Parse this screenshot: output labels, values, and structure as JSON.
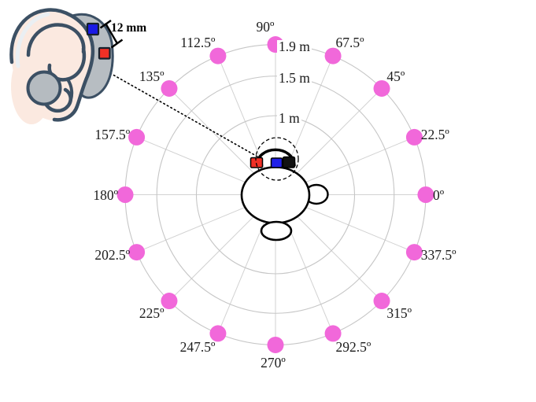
{
  "chart_data": {
    "type": "scatter",
    "projection": "polar",
    "title": "",
    "grid": true,
    "speaker_distance_m": 1.9,
    "angles_deg": [
      0,
      22.5,
      45,
      67.5,
      90,
      112.5,
      135,
      157.5,
      180,
      202.5,
      225,
      247.5,
      270,
      292.5,
      315,
      337.5
    ],
    "angle_labels": [
      "0º",
      "22.5º",
      "45º",
      "67.5º",
      "90º",
      "112.5º",
      "135º",
      "157.5º",
      "180º",
      "202.5º",
      "225º",
      "247.5º",
      "270º",
      "292.5º",
      "315º",
      "337.5º"
    ],
    "ring_radii_m": [
      1.0,
      1.5,
      1.9
    ],
    "ring_labels": [
      "1 m",
      "1.5 m",
      "1.9 m"
    ],
    "dot_color": "#f168da",
    "grid_color": "#c6c6c6"
  },
  "head": {
    "mic_colors": {
      "red": "#f03026",
      "blue": "#2020e8",
      "black": "#111111"
    }
  },
  "inset": {
    "distance_label": "12 mm",
    "mic_colors": {
      "blue": "#1a1ae6",
      "red": "#f03026"
    },
    "ear_outline_color": "#3c5064",
    "aid_body_color": "#b7bdc2",
    "skin_color": "#fbe9e0"
  }
}
